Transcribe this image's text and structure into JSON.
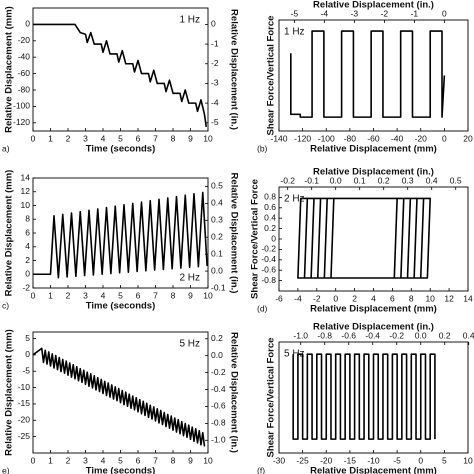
{
  "chart_data": [
    {
      "type": "line",
      "panel_label": "a)",
      "annotation": "1 Hz",
      "annotation_position": "top-right",
      "color": "#000000",
      "xlabel": "Time (seconds)",
      "ylabel": "Relative Displacement (mm)",
      "y2label": "Relative Displacement (in.)",
      "xlim": [
        0,
        10
      ],
      "xticks": [
        0,
        1,
        2,
        3,
        4,
        5,
        6,
        7,
        8,
        9,
        10
      ],
      "ylim": [
        -130,
        20
      ],
      "yticks": [
        0,
        -20,
        -40,
        -60,
        -80,
        -100,
        -120
      ],
      "y2lim": [
        -5.417,
        0.833
      ],
      "y2ticks": [
        0,
        -1,
        -2,
        -3,
        -4,
        -5
      ],
      "x": [
        0,
        2.4,
        2.7,
        3.0,
        3.1,
        3.3,
        3.5,
        3.9,
        4.0,
        4.2,
        4.4,
        4.8,
        4.9,
        5.1,
        5.3,
        5.7,
        5.8,
        6.0,
        6.2,
        6.6,
        6.7,
        6.9,
        7.1,
        7.5,
        7.6,
        7.8,
        8.0,
        8.4,
        8.5,
        8.7,
        8.9,
        9.3,
        9.4,
        9.6,
        9.8,
        9.9
      ],
      "values": [
        0,
        0,
        -10,
        -12,
        -22,
        -10,
        -24,
        -24,
        -34,
        -20,
        -36,
        -36,
        -46,
        -32,
        -48,
        -48,
        -58,
        -44,
        -60,
        -60,
        -70,
        -56,
        -72,
        -72,
        -82,
        -68,
        -84,
        -84,
        -94,
        -80,
        -96,
        -96,
        -106,
        -92,
        -110,
        -125
      ]
    },
    {
      "type": "line",
      "panel_label": "(b)",
      "annotation": "1 Hz",
      "annotation_position": "top-left",
      "color": "#000000",
      "xlabel": "Relative Displacement (mm)",
      "x2label": "Relative Displacement (in.)",
      "ylabel": "Shear Force/Vertical Force",
      "xlim": [
        -140,
        20
      ],
      "xticks": [
        -140,
        -120,
        -100,
        -80,
        -60,
        -40,
        -20,
        0,
        20
      ],
      "x2lim": [
        -5.512,
        0.787
      ],
      "x2ticks": [
        -5,
        -4,
        -3,
        -2,
        -1,
        0
      ],
      "ylim": [
        -1,
        1
      ],
      "x": [
        0,
        -2,
        -2,
        -12,
        -12,
        -27,
        -27,
        -37,
        -37,
        -52,
        -52,
        -62,
        -62,
        -77,
        -77,
        -87,
        -87,
        -102,
        -102,
        -112,
        -112,
        -122,
        -122,
        -130,
        -130
      ],
      "values": [
        0,
        -0.75,
        0.8,
        0.8,
        -0.75,
        -0.75,
        0.8,
        0.8,
        -0.75,
        -0.75,
        0.8,
        0.8,
        -0.75,
        -0.75,
        0.8,
        0.8,
        -0.75,
        -0.75,
        0.8,
        0.8,
        -0.75,
        -0.75,
        -0.7,
        -0.7,
        0.4
      ]
    },
    {
      "type": "line",
      "panel_label": "c)",
      "annotation": "2 Hz",
      "annotation_position": "bottom-right",
      "color": "#000000",
      "xlabel": "Time (seconds)",
      "ylabel": "Relative Displacement (mm)",
      "y2label": "Relative Displacement (in.)",
      "xlim": [
        0,
        10
      ],
      "xticks": [
        0,
        1,
        2,
        3,
        4,
        5,
        6,
        7,
        8,
        9,
        10
      ],
      "ylim": [
        -2,
        14
      ],
      "yticks": [
        -2,
        0,
        2,
        4,
        6,
        8,
        10,
        12,
        14
      ],
      "y2lim": [
        -0.1,
        0.55
      ],
      "y2ticks": [
        -0.1,
        {
          "value": 0,
          "label": "0.0"
        },
        0.1,
        0.2,
        0.3,
        0.4,
        0.5
      ],
      "x": [
        0,
        1,
        1.2,
        1.45,
        1.7,
        1.95,
        2.2,
        2.45,
        2.7,
        2.95,
        3.2,
        3.45,
        3.7,
        3.95,
        4.2,
        4.45,
        4.7,
        4.95,
        5.2,
        5.45,
        5.7,
        5.95,
        6.2,
        6.45,
        6.7,
        6.95,
        7.2,
        7.45,
        7.7,
        7.95,
        8.2,
        8.45,
        8.7,
        8.95,
        9.2,
        9.45,
        9.7,
        9.95
      ],
      "values": [
        0,
        0,
        8.5,
        -0.5,
        8.7,
        -0.4,
        8.9,
        -0.3,
        9.1,
        -0.2,
        9.3,
        -0.1,
        9.5,
        0,
        9.7,
        0.1,
        9.9,
        0.2,
        10.1,
        0.3,
        10.3,
        0.4,
        10.5,
        0.5,
        10.7,
        0.6,
        10.9,
        0.7,
        11.1,
        0.8,
        11.3,
        0.9,
        11.5,
        1,
        11.7,
        1.1,
        11.9,
        1.2
      ]
    },
    {
      "type": "line",
      "panel_label": "(d)",
      "annotation": "2 Hz",
      "annotation_position": "top-left",
      "color": "#000000",
      "xlabel": "Relative Displacement (mm)",
      "x2label": "Relative Displacement (in.)",
      "ylabel": "Shear Force/Vertical Force",
      "xlim": [
        -6,
        14
      ],
      "xticks": [
        -6,
        -4,
        -2,
        0,
        2,
        4,
        6,
        8,
        10,
        12,
        14
      ],
      "x2lim": [
        -0.2362,
        0.5512
      ],
      "x2ticks": [
        -0.2,
        -0.1,
        {
          "value": 0,
          "label": "0.0"
        },
        0.1,
        0.2,
        0.3,
        0.4,
        0.5
      ],
      "ylim": [
        -1,
        1
      ],
      "yticks": [
        0.8,
        0.6,
        0.4,
        0.2,
        0,
        -0.2,
        -0.4,
        -0.6,
        -0.8
      ],
      "x": [
        -4,
        -3.7,
        6.5,
        6.2,
        -4,
        -3.3,
        -3,
        7.2,
        6.9,
        -3.3,
        -2.6,
        -2.3,
        7.9,
        7.6,
        -2.6,
        -1.9,
        -1.6,
        8.6,
        8.3,
        -1.9,
        -1.2,
        -0.9,
        9.3,
        9,
        -1.2,
        -0.5,
        -0.2,
        10,
        9.7,
        -0.5
      ],
      "values": [
        -0.75,
        0.78,
        0.78,
        -0.75,
        -0.75,
        -0.75,
        0.78,
        0.78,
        -0.75,
        -0.75,
        -0.75,
        0.78,
        0.78,
        -0.75,
        -0.75,
        -0.75,
        0.78,
        0.78,
        -0.75,
        -0.75,
        -0.75,
        0.78,
        0.78,
        -0.75,
        -0.75,
        -0.75,
        0.78,
        0.78,
        -0.75,
        -0.75
      ]
    },
    {
      "type": "line",
      "panel_label": "e)",
      "annotation": "5 Hz",
      "annotation_position": "top-right",
      "color": "#000000",
      "xlabel": "Time (seconds)",
      "ylabel": "Relative Displacement (mm)",
      "y2label": "Relative Displacement (in.)",
      "xlim": [
        0,
        10
      ],
      "xticks": [
        0,
        1,
        2,
        3,
        4,
        5,
        6,
        7,
        8,
        9,
        10
      ],
      "ylim": [
        -30,
        7
      ],
      "yticks": [
        5,
        0,
        -5,
        -10,
        -15,
        -20,
        -25
      ],
      "y2lim": [
        -1.15,
        0.28
      ],
      "y2ticks": [
        0.2,
        {
          "value": 0,
          "label": "0.0"
        },
        -0.2,
        -0.4,
        -0.6,
        -0.8,
        {
          "value": -1,
          "label": "-1.0"
        }
      ],
      "x": [
        0,
        0.5,
        0.6,
        0.7,
        0.8,
        0.9,
        1,
        1.1,
        1.2,
        1.3,
        1.4,
        1.5,
        1.6,
        1.7,
        1.8,
        1.9,
        2,
        2.1,
        2.2,
        2.3,
        2.4,
        2.5,
        2.6,
        2.7,
        2.8,
        2.9,
        3,
        3.1,
        3.2,
        3.3,
        3.4,
        3.5,
        3.6,
        3.7,
        3.8,
        3.9,
        4,
        4.1,
        4.2,
        4.3,
        4.4,
        4.5,
        4.6,
        4.7,
        4.8,
        4.9,
        5,
        5.1,
        5.2,
        5.3,
        5.4,
        5.5,
        5.6,
        5.7,
        5.8,
        5.9,
        6,
        6.1,
        6.2,
        6.3,
        6.4,
        6.5,
        6.6,
        6.7,
        6.8,
        6.9,
        7,
        7.1,
        7.2,
        7.3,
        7.4,
        7.5,
        7.6,
        7.7,
        7.8,
        7.9,
        8,
        8.1,
        8.2,
        8.3,
        8.4,
        8.5,
        8.6,
        8.7,
        8.8,
        8.9,
        9,
        9.1,
        9.2,
        9.3,
        9.4,
        9.5,
        9.6,
        9.7,
        9.8
      ],
      "values": [
        0,
        2,
        -2.3,
        1.4,
        -2.8,
        0.9,
        -3.4,
        0.3,
        -4,
        -0.2,
        -4.5,
        -0.8,
        -5.1,
        -1.4,
        -5.6,
        -1.9,
        -6.2,
        -2.5,
        -6.8,
        -3,
        -7.3,
        -3.6,
        -7.9,
        -4.2,
        -8.4,
        -4.7,
        -9,
        -5.3,
        -9.6,
        -5.8,
        -10.1,
        -6.4,
        -10.7,
        -7,
        -11.2,
        -7.5,
        -11.8,
        -8.1,
        -12.4,
        -8.6,
        -12.9,
        -9.2,
        -13.5,
        -9.8,
        -14,
        -10.3,
        -14.6,
        -10.9,
        -15.2,
        -11.4,
        -15.7,
        -12,
        -16.3,
        -12.6,
        -16.8,
        -13.1,
        -17.4,
        -13.7,
        -18,
        -14.2,
        -18.5,
        -14.8,
        -19.1,
        -15.4,
        -19.6,
        -15.9,
        -20.2,
        -16.5,
        -20.8,
        -17,
        -21.3,
        -17.6,
        -21.9,
        -18.2,
        -22.4,
        -18.7,
        -23,
        -19.3,
        -23.6,
        -19.8,
        -24.1,
        -20.4,
        -24.7,
        -21,
        -25.2,
        -21.5,
        -25.8,
        -22.1,
        -26.4,
        -22.6,
        -26.9,
        -23.2,
        -27.5,
        -23.8,
        -28
      ]
    },
    {
      "type": "line",
      "panel_label": "(f)",
      "annotation": "5 Hz",
      "annotation_position": "top-left",
      "color": "#000000",
      "xlabel": "Relative Displacement (mm)",
      "x2label": "Relative Displacement (in.)",
      "ylabel": "Shear Force/Vertical Force",
      "xlim": [
        -30,
        10
      ],
      "xticks": [
        -30,
        -25,
        -20,
        -15,
        -10,
        -5,
        0,
        5,
        10
      ],
      "x2lim": [
        -1.181,
        0.394
      ],
      "x2ticks": [
        {
          "value": -1,
          "label": "-1.0"
        },
        -0.8,
        -0.6,
        -0.4,
        -0.2,
        {
          "value": 0,
          "label": "0.0"
        },
        0.2,
        0.4
      ],
      "ylim": [
        -1,
        1
      ],
      "x": [
        3,
        3,
        2,
        2,
        1,
        1,
        0,
        0,
        -1,
        -1,
        -2,
        -2,
        -3,
        -3,
        -4,
        -4,
        -5,
        -5,
        -6,
        -6,
        -7,
        -7,
        -8,
        -8,
        -9,
        -9,
        -10,
        -10,
        -11,
        -11,
        -12,
        -12,
        -13,
        -13,
        -14,
        -14,
        -15,
        -15,
        -16,
        -16,
        -17,
        -17,
        -18,
        -18,
        -19,
        -19,
        -20,
        -20,
        -21,
        -21,
        -22,
        -22,
        -23,
        -23,
        -24,
        -24,
        -25,
        -25,
        -26,
        -26,
        -27,
        -27
      ],
      "values": [
        -0.75,
        0.78,
        0.78,
        -0.75,
        -0.75,
        0.78,
        0.78,
        -0.75,
        -0.75,
        0.78,
        0.78,
        -0.75,
        -0.75,
        0.78,
        0.78,
        -0.75,
        -0.75,
        0.78,
        0.78,
        -0.75,
        -0.75,
        0.78,
        0.78,
        -0.75,
        -0.75,
        0.78,
        0.78,
        -0.75,
        -0.75,
        0.78,
        0.78,
        -0.75,
        -0.75,
        0.78,
        0.78,
        -0.75,
        -0.75,
        0.78,
        0.78,
        -0.75,
        -0.75,
        0.78,
        0.78,
        -0.75,
        -0.75,
        0.78,
        0.78,
        -0.75,
        -0.75,
        0.78,
        0.78,
        -0.75,
        -0.75,
        0.78,
        0.78,
        -0.75,
        -0.75,
        0.78,
        0.78,
        -0.75,
        -0.75,
        0.78
      ]
    }
  ]
}
